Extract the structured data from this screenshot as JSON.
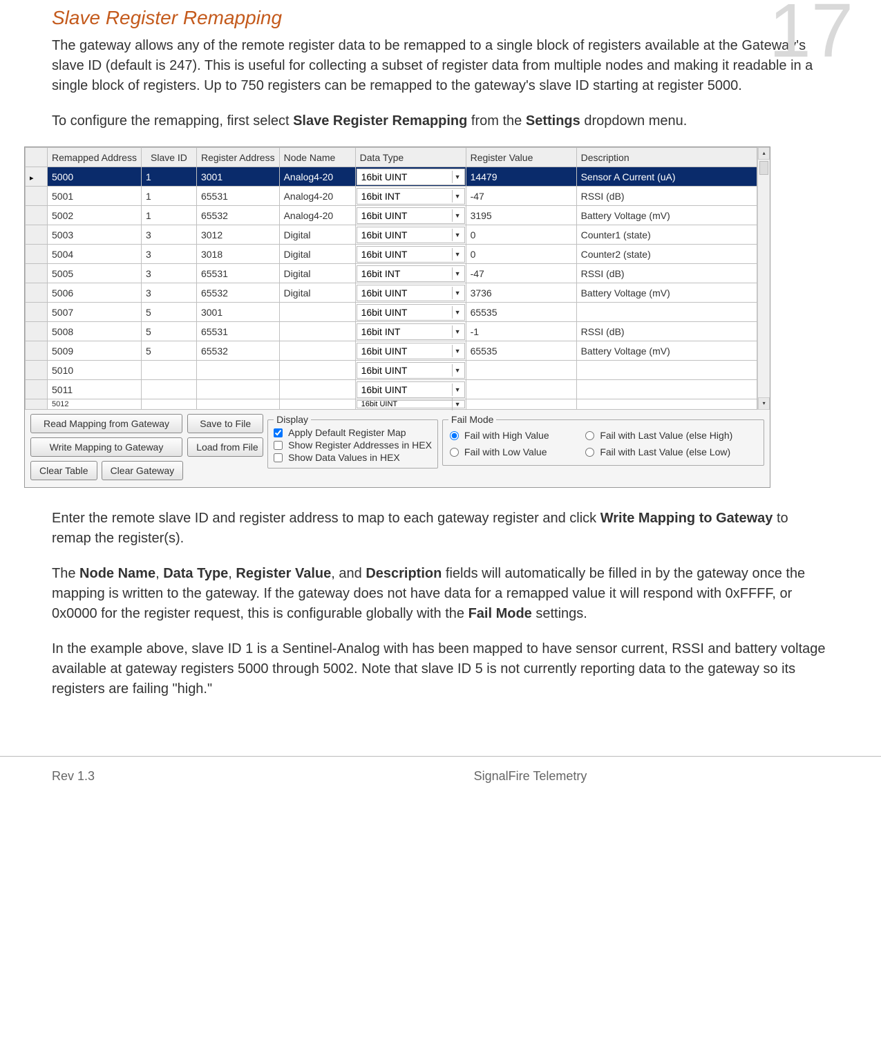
{
  "page_number": "17",
  "title": "Slave Register Remapping",
  "para1_a": "The gateway allows any of the remote register data to be remapped to a single block of registers available at the Gateway's slave ID (default is 247). This is useful for collecting a subset of register data from multiple nodes and making it readable in a single block of registers. Up to 750 registers can be remapped to the gateway's slave ID starting at register 5000.",
  "para2_pre": "To configure the remapping, first select ",
  "para2_b1": "Slave Register Remapping",
  "para2_mid": " from the ",
  "para2_b2": "Settings",
  "para2_post": " dropdown menu.",
  "table": {
    "headers": [
      "",
      "Remapped Address",
      "Slave ID",
      "Register Address",
      "Node Name",
      "Data Type",
      "Register Value",
      "Description"
    ],
    "rows": [
      {
        "sel": true,
        "remapped": "5000",
        "slave": "1",
        "reg": "3001",
        "node": "Analog4-20",
        "dtype": "16bit UINT",
        "val": "14479",
        "desc": "Sensor A Current (uA)"
      },
      {
        "sel": false,
        "remapped": "5001",
        "slave": "1",
        "reg": "65531",
        "node": "Analog4-20",
        "dtype": "16bit INT",
        "val": "-47",
        "desc": "RSSI (dB)"
      },
      {
        "sel": false,
        "remapped": "5002",
        "slave": "1",
        "reg": "65532",
        "node": "Analog4-20",
        "dtype": "16bit UINT",
        "val": "3195",
        "desc": "Battery Voltage (mV)"
      },
      {
        "sel": false,
        "remapped": "5003",
        "slave": "3",
        "reg": "3012",
        "node": "Digital",
        "dtype": "16bit UINT",
        "val": "0",
        "desc": "Counter1 (state)"
      },
      {
        "sel": false,
        "remapped": "5004",
        "slave": "3",
        "reg": "3018",
        "node": "Digital",
        "dtype": "16bit UINT",
        "val": "0",
        "desc": "Counter2 (state)"
      },
      {
        "sel": false,
        "remapped": "5005",
        "slave": "3",
        "reg": "65531",
        "node": "Digital",
        "dtype": "16bit INT",
        "val": "-47",
        "desc": "RSSI (dB)"
      },
      {
        "sel": false,
        "remapped": "5006",
        "slave": "3",
        "reg": "65532",
        "node": "Digital",
        "dtype": "16bit UINT",
        "val": "3736",
        "desc": "Battery Voltage (mV)"
      },
      {
        "sel": false,
        "remapped": "5007",
        "slave": "5",
        "reg": "3001",
        "node": "",
        "dtype": "16bit UINT",
        "val": "65535",
        "desc": ""
      },
      {
        "sel": false,
        "remapped": "5008",
        "slave": "5",
        "reg": "65531",
        "node": "",
        "dtype": "16bit INT",
        "val": "-1",
        "desc": "RSSI (dB)"
      },
      {
        "sel": false,
        "remapped": "5009",
        "slave": "5",
        "reg": "65532",
        "node": "",
        "dtype": "16bit UINT",
        "val": "65535",
        "desc": "Battery Voltage (mV)"
      },
      {
        "sel": false,
        "remapped": "5010",
        "slave": "",
        "reg": "",
        "node": "",
        "dtype": "16bit UINT",
        "val": "",
        "desc": ""
      },
      {
        "sel": false,
        "remapped": "5011",
        "slave": "",
        "reg": "",
        "node": "",
        "dtype": "16bit UINT",
        "val": "",
        "desc": ""
      }
    ],
    "partial_row": {
      "remapped": "5012",
      "dtype": "16bit UINT"
    }
  },
  "buttons": {
    "read": "Read Mapping from Gateway",
    "save": "Save to File",
    "write": "Write Mapping to Gateway",
    "load": "Load from File",
    "clear_table": "Clear Table",
    "clear_gw": "Clear Gateway"
  },
  "display_group": {
    "legend": "Display",
    "opt1": "Apply Default Register Map",
    "opt2": "Show Register Addresses in HEX",
    "opt3": "Show Data Values in HEX",
    "chk1": true,
    "chk2": false,
    "chk3": false
  },
  "fail_group": {
    "legend": "Fail Mode",
    "opt1": "Fail with High Value",
    "opt2": "Fail with Last Value (else High)",
    "opt3": "Fail with Low Value",
    "opt4": "Fail with Last Value (else Low)",
    "selected": 1
  },
  "para3_pre": "Enter the remote slave ID and register address to map to each gateway register and click ",
  "para3_b1": "Write Mapping to Gateway",
  "para3_post": " to remap the register(s).",
  "para4_pre": "The ",
  "para4_b1": "Node Name",
  "para4_s1": ", ",
  "para4_b2": "Data Type",
  "para4_s2": ", ",
  "para4_b3": "Register Value",
  "para4_s3": ", and ",
  "para4_b4": "Description",
  "para4_mid": " fields will automatically be filled in by the gateway once the mapping is written to the gateway. If the gateway does not have data for a remapped value it will respond with 0xFFFF, or 0x0000 for the register request, this is configurable globally with the ",
  "para4_b5": "Fail Mode",
  "para4_post": " settings.",
  "para5": "In the example above, slave ID 1 is a Sentinel-Analog with has been mapped to have sensor current, RSSI and battery voltage available at gateway registers 5000 through 5002. Note that slave ID 5 is not currently reporting data to the gateway so its registers are failing \"high.\"",
  "footer": {
    "rev": "Rev 1.3",
    "center": "SignalFire Telemetry"
  }
}
